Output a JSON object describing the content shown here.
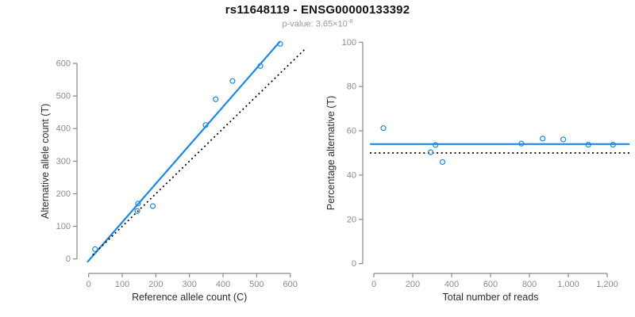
{
  "header": {
    "title": "rs11648119 - ENSG00000133392",
    "pvalue_prefix": "p-value: ",
    "pvalue_base": "3.65×10",
    "pvalue_exponent": "-8"
  },
  "colors": {
    "accent_blue": "#1E88E5",
    "dotted_black": "#000000",
    "axis_line": "#8a8a8a",
    "tick_label": "#8c8c8c",
    "axis_title": "#2e2e2e",
    "title_text": "#141414",
    "subtitle_text": "#9b9b9b"
  },
  "chart_data": [
    {
      "name": "allele-count-scatter",
      "type": "scatter",
      "xlabel": "Reference allele count (C)",
      "ylabel": "Alternative allele count (T)",
      "xlim": [
        -26,
        646
      ],
      "ylim": [
        -27,
        664
      ],
      "grid": false,
      "xtick_values": [
        0,
        100,
        200,
        300,
        400,
        500,
        600
      ],
      "xtick_labels": [
        "0",
        "100",
        "200",
        "300",
        "400",
        "500",
        "600"
      ],
      "ytick_values": [
        0,
        100,
        200,
        300,
        400,
        500,
        600
      ],
      "ytick_labels": [
        "0",
        "100",
        "200",
        "300",
        "400",
        "500",
        "600"
      ],
      "points": [
        [
          19,
          30
        ],
        [
          145,
          147
        ],
        [
          147,
          170
        ],
        [
          191,
          162
        ],
        [
          348,
          411
        ],
        [
          378,
          490
        ],
        [
          428,
          546
        ],
        [
          511,
          592
        ],
        [
          570,
          660
        ]
      ],
      "lines": [
        {
          "name": "regression-line",
          "style": "solid",
          "color": "#1E88E5",
          "width": 2.2,
          "x1": -4,
          "y1": -10,
          "x2": 570,
          "y2": 668
        },
        {
          "name": "identity-line",
          "style": "dotted",
          "color": "#000000",
          "width": 1.7,
          "x1": 12,
          "y1": 12,
          "x2": 648,
          "y2": 648
        }
      ]
    },
    {
      "name": "percentage-vs-reads-scatter",
      "type": "scatter",
      "xlabel": "Total number of reads",
      "ylabel": "Percentage alternative (T)",
      "xlim": [
        -51,
        1286
      ],
      "ylim": [
        -4,
        104
      ],
      "grid": false,
      "xtick_values": [
        0,
        200,
        400,
        600,
        800,
        1000,
        1200
      ],
      "xtick_labels": [
        "0",
        "200",
        "400",
        "600",
        "800",
        "1,000",
        "1,200"
      ],
      "ytick_values": [
        0,
        20,
        40,
        60,
        80,
        100
      ],
      "ytick_labels": [
        "0",
        "20",
        "40",
        "60",
        "80",
        "100"
      ],
      "points": [
        [
          49,
          61.2
        ],
        [
          292,
          50.3
        ],
        [
          317,
          53.6
        ],
        [
          353,
          45.9
        ],
        [
          759,
          54.2
        ],
        [
          868,
          56.5
        ],
        [
          974,
          56.1
        ],
        [
          1103,
          53.7
        ],
        [
          1230,
          53.7
        ]
      ],
      "lines": [
        {
          "name": "mean-percentage-line",
          "style": "solid",
          "color": "#1E88E5",
          "width": 2.2,
          "x1": -20,
          "y1": 54,
          "x2": 1315,
          "y2": 54
        },
        {
          "name": "null-50-percent-line",
          "style": "dotted",
          "color": "#000000",
          "width": 1.7,
          "x1": -20,
          "y1": 50,
          "x2": 1315,
          "y2": 50
        }
      ]
    }
  ]
}
